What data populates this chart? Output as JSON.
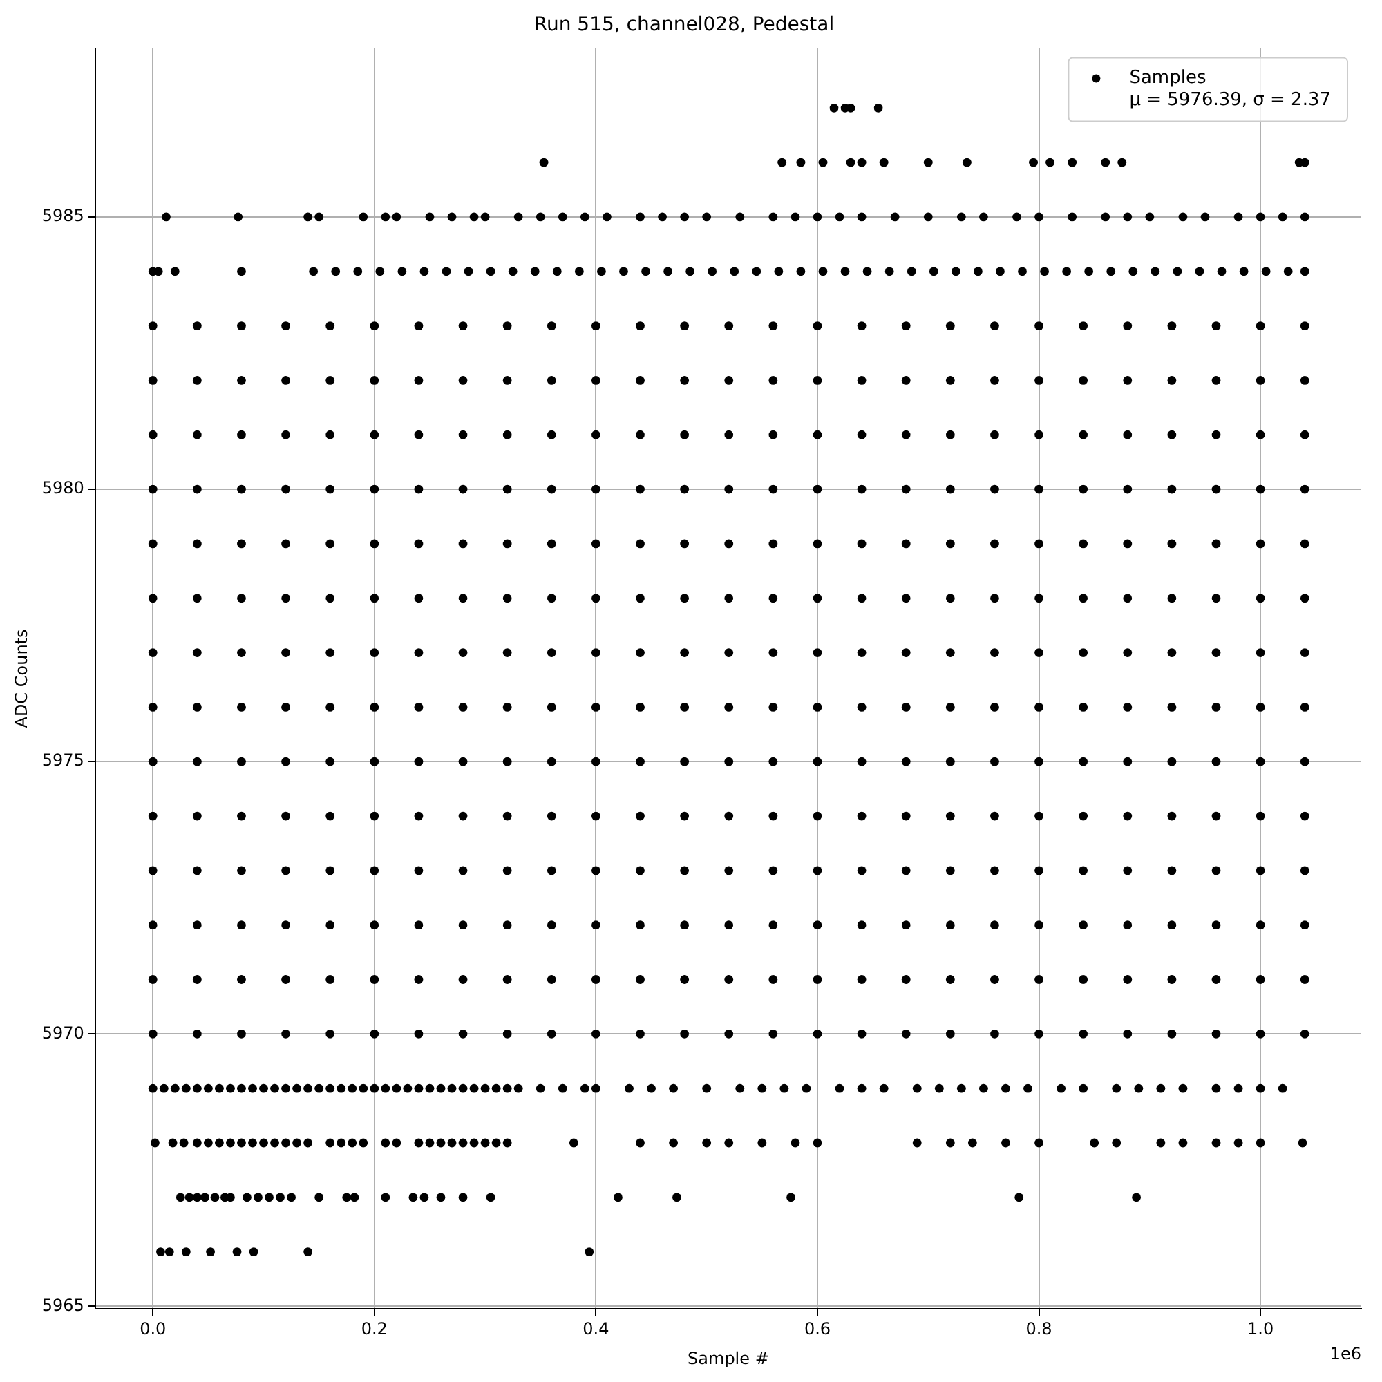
{
  "chart_data": {
    "type": "scatter",
    "title": "Run 515, channel028, Pedestal",
    "xlabel": "Sample #",
    "ylabel": "ADC Counts",
    "annotations": [
      "μ = 5976.39, σ = 2.37",
      "1e6"
    ],
    "xlim": [
      -0.052,
      1.091
    ],
    "xticks": [
      {
        "value": 0,
        "label": "0.0"
      },
      0.2,
      0.4,
      0.6,
      0.8,
      {
        "value": 1,
        "label": "1.0"
      }
    ],
    "ylim": [
      5964.95,
      5988.1
    ],
    "yticks": [
      5965,
      5970,
      5975,
      5980,
      5985
    ],
    "grid": true,
    "legend": "top right",
    "marker": "circle",
    "x": [
      0,
      0.04,
      0.08,
      0.12,
      0.16,
      0.2,
      0.24,
      0.28,
      0.32,
      0.36,
      0.4,
      0.44,
      0.48,
      0.52,
      0.56,
      0.6,
      0.64,
      0.68,
      0.72,
      0.76,
      0.8,
      0.84,
      0.88,
      0.92,
      0.96,
      1,
      1.04
    ],
    "series": [
      {
        "name": "Samples",
        "color": "#000000",
        "values": [
          5970,
          5970,
          5970,
          5970,
          5970,
          5970,
          5970,
          5970,
          5970,
          5970,
          5970,
          5970,
          5970,
          5970,
          5970,
          5970,
          5970,
          5970,
          5970,
          5970,
          5970,
          5970,
          5970,
          5970,
          5970,
          5970,
          5970
        ]
      },
      {
        "color": "#000000",
        "values": [
          5971,
          5971,
          5971,
          5971,
          5971,
          5971,
          5971,
          5971,
          5971,
          5971,
          5971,
          5971,
          5971,
          5971,
          5971,
          5971,
          5971,
          5971,
          5971,
          5971,
          5971,
          5971,
          5971,
          5971,
          5971,
          5971,
          5971
        ]
      },
      {
        "color": "#000000",
        "values": [
          5972,
          5972,
          5972,
          5972,
          5972,
          5972,
          5972,
          5972,
          5972,
          5972,
          5972,
          5972,
          5972,
          5972,
          5972,
          5972,
          5972,
          5972,
          5972,
          5972,
          5972,
          5972,
          5972,
          5972,
          5972,
          5972,
          5972
        ]
      },
      {
        "color": "#000000",
        "values": [
          5973,
          5973,
          5973,
          5973,
          5973,
          5973,
          5973,
          5973,
          5973,
          5973,
          5973,
          5973,
          5973,
          5973,
          5973,
          5973,
          5973,
          5973,
          5973,
          5973,
          5973,
          5973,
          5973,
          5973,
          5973,
          5973,
          5973
        ]
      },
      {
        "color": "#000000",
        "values": [
          5974,
          5974,
          5974,
          5974,
          5974,
          5974,
          5974,
          5974,
          5974,
          5974,
          5974,
          5974,
          5974,
          5974,
          5974,
          5974,
          5974,
          5974,
          5974,
          5974,
          5974,
          5974,
          5974,
          5974,
          5974,
          5974,
          5974
        ]
      },
      {
        "color": "#000000",
        "values": [
          5975,
          5975,
          5975,
          5975,
          5975,
          5975,
          5975,
          5975,
          5975,
          5975,
          5975,
          5975,
          5975,
          5975,
          5975,
          5975,
          5975,
          5975,
          5975,
          5975,
          5975,
          5975,
          5975,
          5975,
          5975,
          5975,
          5975
        ]
      },
      {
        "color": "#000000",
        "values": [
          5976,
          5976,
          5976,
          5976,
          5976,
          5976,
          5976,
          5976,
          5976,
          5976,
          5976,
          5976,
          5976,
          5976,
          5976,
          5976,
          5976,
          5976,
          5976,
          5976,
          5976,
          5976,
          5976,
          5976,
          5976,
          5976,
          5976
        ]
      },
      {
        "color": "#000000",
        "values": [
          5977,
          5977,
          5977,
          5977,
          5977,
          5977,
          5977,
          5977,
          5977,
          5977,
          5977,
          5977,
          5977,
          5977,
          5977,
          5977,
          5977,
          5977,
          5977,
          5977,
          5977,
          5977,
          5977,
          5977,
          5977,
          5977,
          5977
        ]
      },
      {
        "color": "#000000",
        "values": [
          5978,
          5978,
          5978,
          5978,
          5978,
          5978,
          5978,
          5978,
          5978,
          5978,
          5978,
          5978,
          5978,
          5978,
          5978,
          5978,
          5978,
          5978,
          5978,
          5978,
          5978,
          5978,
          5978,
          5978,
          5978,
          5978,
          5978
        ]
      },
      {
        "color": "#000000",
        "values": [
          5979,
          5979,
          5979,
          5979,
          5979,
          5979,
          5979,
          5979,
          5979,
          5979,
          5979,
          5979,
          5979,
          5979,
          5979,
          5979,
          5979,
          5979,
          5979,
          5979,
          5979,
          5979,
          5979,
          5979,
          5979,
          5979,
          5979
        ]
      },
      {
        "color": "#000000",
        "values": [
          5980,
          5980,
          5980,
          5980,
          5980,
          5980,
          5980,
          5980,
          5980,
          5980,
          5980,
          5980,
          5980,
          5980,
          5980,
          5980,
          5980,
          5980,
          5980,
          5980,
          5980,
          5980,
          5980,
          5980,
          5980,
          5980,
          5980
        ]
      },
      {
        "color": "#000000",
        "values": [
          5981,
          5981,
          5981,
          5981,
          5981,
          5981,
          5981,
          5981,
          5981,
          5981,
          5981,
          5981,
          5981,
          5981,
          5981,
          5981,
          5981,
          5981,
          5981,
          5981,
          5981,
          5981,
          5981,
          5981,
          5981,
          5981,
          5981
        ]
      },
      {
        "color": "#000000",
        "values": [
          5982,
          5982,
          5982,
          5982,
          5982,
          5982,
          5982,
          5982,
          5982,
          5982,
          5982,
          5982,
          5982,
          5982,
          5982,
          5982,
          5982,
          5982,
          5982,
          5982,
          5982,
          5982,
          5982,
          5982,
          5982,
          5982,
          5982
        ]
      },
      {
        "color": "#000000",
        "values": [
          5983,
          5983,
          5983,
          5983,
          5983,
          5983,
          5983,
          5983,
          5983,
          5983,
          5983,
          5983,
          5983,
          5983,
          5983,
          5983,
          5983,
          5983,
          5983,
          5983,
          5983,
          5983,
          5983,
          5983,
          5983,
          5983,
          5983
        ]
      },
      {
        "color": "#000000",
        "x": [
          0,
          0.005,
          0.02,
          0.08,
          0.145,
          0.165,
          0.185,
          0.205,
          0.225,
          0.245,
          0.265,
          0.285,
          0.305,
          0.325,
          0.345,
          0.365,
          0.385,
          0.405,
          0.425,
          0.445,
          0.465,
          0.485,
          0.505,
          0.525,
          0.545,
          0.565,
          0.585,
          0.605,
          0.625,
          0.645,
          0.665,
          0.685,
          0.705,
          0.725,
          0.745,
          0.765,
          0.785,
          0.805,
          0.825,
          0.845,
          0.865,
          0.885,
          0.905,
          0.925,
          0.945,
          0.965,
          0.985,
          1.005,
          1.025,
          1.04
        ],
        "values": [
          5984,
          5984,
          5984,
          5984,
          5984,
          5984,
          5984,
          5984,
          5984,
          5984,
          5984,
          5984,
          5984,
          5984,
          5984,
          5984,
          5984,
          5984,
          5984,
          5984,
          5984,
          5984,
          5984,
          5984,
          5984,
          5984,
          5984,
          5984,
          5984,
          5984,
          5984,
          5984,
          5984,
          5984,
          5984,
          5984,
          5984,
          5984,
          5984,
          5984,
          5984,
          5984,
          5984,
          5984,
          5984,
          5984,
          5984,
          5984,
          5984,
          5984
        ]
      },
      {
        "color": "#000000",
        "x": [
          0.012,
          0.077,
          0.14,
          0.15,
          0.19,
          0.21,
          0.22,
          0.25,
          0.27,
          0.29,
          0.3,
          0.33,
          0.35,
          0.37,
          0.39,
          0.41,
          0.44,
          0.46,
          0.48,
          0.5,
          0.53,
          0.56,
          0.58,
          0.6,
          0.62,
          0.64,
          0.67,
          0.7,
          0.73,
          0.75,
          0.78,
          0.8,
          0.83,
          0.86,
          0.88,
          0.9,
          0.93,
          0.95,
          0.98,
          1,
          1.02,
          1.04
        ],
        "values": [
          5985,
          5985,
          5985,
          5985,
          5985,
          5985,
          5985,
          5985,
          5985,
          5985,
          5985,
          5985,
          5985,
          5985,
          5985,
          5985,
          5985,
          5985,
          5985,
          5985,
          5985,
          5985,
          5985,
          5985,
          5985,
          5985,
          5985,
          5985,
          5985,
          5985,
          5985,
          5985,
          5985,
          5985,
          5985,
          5985,
          5985,
          5985,
          5985,
          5985,
          5985,
          5985
        ]
      },
      {
        "color": "#000000",
        "x": [
          0.353,
          0.568,
          0.585,
          0.605,
          0.63,
          0.64,
          0.66,
          0.7,
          0.735,
          0.795,
          0.81,
          0.83,
          0.86,
          0.875,
          1.035,
          1.04
        ],
        "values": [
          5986,
          5986,
          5986,
          5986,
          5986,
          5986,
          5986,
          5986,
          5986,
          5986,
          5986,
          5986,
          5986,
          5986,
          5986,
          5986
        ]
      },
      {
        "color": "#000000",
        "x": [
          0.615,
          0.625,
          0.63,
          0.655
        ],
        "values": [
          5987,
          5987,
          5987,
          5987
        ]
      },
      {
        "color": "#000000",
        "x": [
          0,
          0.01,
          0.02,
          0.03,
          0.04,
          0.05,
          0.06,
          0.07,
          0.08,
          0.09,
          0.1,
          0.11,
          0.12,
          0.13,
          0.14,
          0.15,
          0.16,
          0.17,
          0.18,
          0.19,
          0.2,
          0.21,
          0.22,
          0.23,
          0.24,
          0.25,
          0.26,
          0.27,
          0.28,
          0.29,
          0.3,
          0.31,
          0.32,
          0.33,
          0.35,
          0.37,
          0.39,
          0.4,
          0.43,
          0.45,
          0.47,
          0.5,
          0.53,
          0.55,
          0.57,
          0.59,
          0.62,
          0.64,
          0.66,
          0.69,
          0.71,
          0.73,
          0.75,
          0.77,
          0.79,
          0.82,
          0.84,
          0.87,
          0.89,
          0.91,
          0.93,
          0.96,
          0.98,
          1,
          1.02
        ],
        "values": [
          5969,
          5969,
          5969,
          5969,
          5969,
          5969,
          5969,
          5969,
          5969,
          5969,
          5969,
          5969,
          5969,
          5969,
          5969,
          5969,
          5969,
          5969,
          5969,
          5969,
          5969,
          5969,
          5969,
          5969,
          5969,
          5969,
          5969,
          5969,
          5969,
          5969,
          5969,
          5969,
          5969,
          5969,
          5969,
          5969,
          5969,
          5969,
          5969,
          5969,
          5969,
          5969,
          5969,
          5969,
          5969,
          5969,
          5969,
          5969,
          5969,
          5969,
          5969,
          5969,
          5969,
          5969,
          5969,
          5969,
          5969,
          5969,
          5969,
          5969,
          5969,
          5969,
          5969,
          5969,
          5969
        ]
      },
      {
        "color": "#000000",
        "x": [
          0.002,
          0.018,
          0.028,
          0.04,
          0.05,
          0.06,
          0.07,
          0.08,
          0.09,
          0.1,
          0.11,
          0.12,
          0.13,
          0.14,
          0.16,
          0.17,
          0.18,
          0.19,
          0.21,
          0.22,
          0.24,
          0.25,
          0.26,
          0.27,
          0.28,
          0.29,
          0.3,
          0.31,
          0.32,
          0.38,
          0.44,
          0.47,
          0.5,
          0.52,
          0.55,
          0.58,
          0.6,
          0.69,
          0.72,
          0.74,
          0.77,
          0.8,
          0.85,
          0.87,
          0.91,
          0.93,
          0.96,
          0.98,
          1,
          1.038
        ],
        "values": [
          5968,
          5968,
          5968,
          5968,
          5968,
          5968,
          5968,
          5968,
          5968,
          5968,
          5968,
          5968,
          5968,
          5968,
          5968,
          5968,
          5968,
          5968,
          5968,
          5968,
          5968,
          5968,
          5968,
          5968,
          5968,
          5968,
          5968,
          5968,
          5968,
          5968,
          5968,
          5968,
          5968,
          5968,
          5968,
          5968,
          5968,
          5968,
          5968,
          5968,
          5968,
          5968,
          5968,
          5968,
          5968,
          5968,
          5968,
          5968,
          5968,
          5968
        ]
      },
      {
        "color": "#000000",
        "x": [
          0.025,
          0.033,
          0.04,
          0.047,
          0.056,
          0.065,
          0.07,
          0.085,
          0.095,
          0.105,
          0.115,
          0.125,
          0.15,
          0.175,
          0.182,
          0.21,
          0.235,
          0.245,
          0.26,
          0.28,
          0.305,
          0.42,
          0.473,
          0.576,
          0.782,
          0.888
        ],
        "values": [
          5967,
          5967,
          5967,
          5967,
          5967,
          5967,
          5967,
          5967,
          5967,
          5967,
          5967,
          5967,
          5967,
          5967,
          5967,
          5967,
          5967,
          5967,
          5967,
          5967,
          5967,
          5967,
          5967,
          5967,
          5967,
          5967
        ]
      },
      {
        "color": "#000000",
        "x": [
          0.007,
          0.015,
          0.03,
          0.052,
          0.076,
          0.091,
          0.14,
          0.394
        ],
        "values": [
          5966,
          5966,
          5966,
          5966,
          5966,
          5966,
          5966,
          5966
        ]
      }
    ]
  }
}
